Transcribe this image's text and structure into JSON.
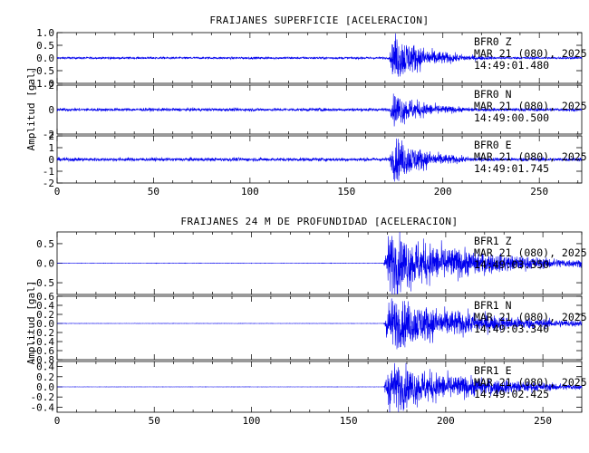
{
  "colors": {
    "trace": "#0000ee",
    "axis": "#000000"
  },
  "chart_data": [
    {
      "type": "line",
      "title": "FRAIJANES SUPERFICIE [ACELERACION]",
      "ylabel": "Amplitud [gal]",
      "xlim": [
        0,
        272
      ],
      "xticks": [
        0,
        50,
        100,
        150,
        200,
        250
      ],
      "event_onset_s": 172,
      "panels": [
        {
          "station": "BFR0",
          "channel": "Z",
          "date": "MAR 21 (080), 2025",
          "time": "14:49:01.480",
          "ylim": [
            -1.0,
            1.0
          ],
          "yticks": [
            -1.0,
            -0.5,
            0.0,
            0.5,
            1.0
          ],
          "ytick_labels": [
            "-1.0",
            "-0.5",
            "0.0",
            "0.5",
            "1.0"
          ],
          "noise": 0.04,
          "peak": 0.9
        },
        {
          "station": "BFR0",
          "channel": "N",
          "date": "MAR 21 (080), 2025",
          "time": "14:49:00.500",
          "ylim": [
            -2,
            2
          ],
          "yticks": [
            -2,
            0,
            2
          ],
          "ytick_labels": [
            "-2",
            "0",
            "2"
          ],
          "noise": 0.06,
          "peak": 1.3
        },
        {
          "station": "BFR0",
          "channel": "E",
          "date": "MAR 21 (080), 2025",
          "time": "14:49:01.745",
          "ylim": [
            -2,
            2
          ],
          "yticks": [
            -2,
            -1,
            0,
            1,
            2
          ],
          "ytick_labels": [
            "-2",
            "-1",
            "0",
            "1",
            "2"
          ],
          "noise": 0.07,
          "peak": 1.8
        }
      ]
    },
    {
      "type": "line",
      "title": "FRAIJANES 24 M DE PROFUNDIDAD [ACELERACION]",
      "ylabel": "Amplitud [gal]",
      "xlim": [
        0,
        270
      ],
      "xticks": [
        0,
        50,
        100,
        150,
        200,
        250
      ],
      "event_onset_s": 168,
      "panels": [
        {
          "station": "BFR1",
          "channel": "Z",
          "date": "MAR 21 (080), 2025",
          "time": "14:49:03.350",
          "ylim": [
            -0.8,
            0.8
          ],
          "yticks": [
            -0.5,
            0.0,
            0.5
          ],
          "ytick_labels": [
            "-0.5",
            "0.0",
            "0.5"
          ],
          "noise": 0.005,
          "peak": 0.75
        },
        {
          "station": "BFR1",
          "channel": "N",
          "date": "MAR 21 (080), 2025",
          "time": "14:49:03.340",
          "ylim": [
            -0.8,
            0.6
          ],
          "yticks": [
            -0.8,
            -0.6,
            -0.4,
            -0.2,
            0.0,
            0.2,
            0.4,
            0.6
          ],
          "ytick_labels": [
            "-0.8",
            "-0.6",
            "-0.4",
            "-0.2",
            "0.0",
            "0.2",
            "0.4",
            "0.6"
          ],
          "noise": 0.004,
          "peak": 0.55
        },
        {
          "station": "BFR1",
          "channel": "E",
          "date": "MAR 21 (080), 2025",
          "time": "14:49:02.425",
          "ylim": [
            -0.5,
            0.5
          ],
          "yticks": [
            -0.4,
            -0.2,
            0.0,
            0.2,
            0.4
          ],
          "ytick_labels": [
            "-0.4",
            "-0.2",
            "0.0",
            "0.2",
            "0.4"
          ],
          "noise": 0.004,
          "peak": 0.45
        }
      ]
    }
  ]
}
